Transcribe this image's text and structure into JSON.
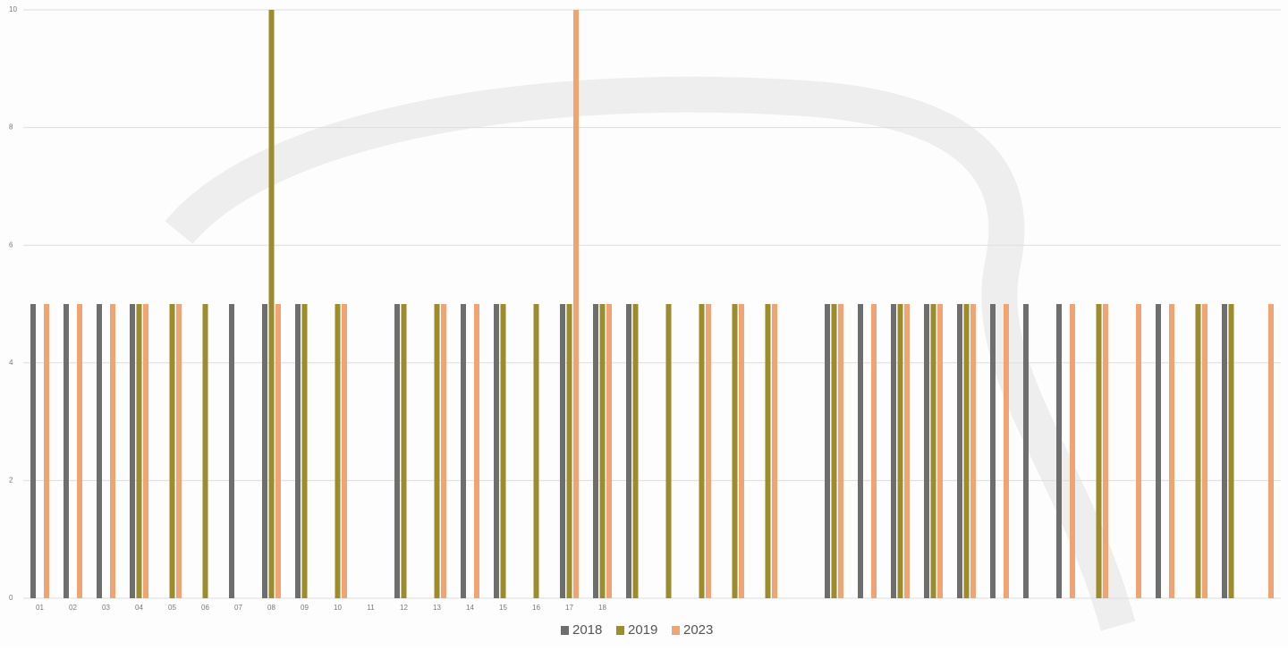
{
  "chart_data": {
    "type": "bar",
    "categories": [
      "01",
      "02",
      "03",
      "04",
      "05",
      "06",
      "07",
      "08",
      "09",
      "10",
      "11",
      "12",
      "13",
      "14",
      "15",
      "16",
      "17",
      "18",
      null,
      null,
      null,
      null,
      null,
      null,
      null,
      null,
      null,
      null,
      null,
      null,
      null,
      null,
      null,
      null,
      null,
      null,
      null,
      null
    ],
    "series": [
      {
        "name": "2018",
        "color": "#6e6e6e",
        "values": [
          5,
          5,
          5,
          5,
          null,
          null,
          5,
          5,
          5,
          null,
          null,
          5,
          null,
          5,
          5,
          null,
          5,
          5,
          5,
          null,
          null,
          null,
          null,
          null,
          5,
          5,
          5,
          5,
          5,
          5,
          5,
          5,
          null,
          null,
          5,
          null,
          5,
          null
        ]
      },
      {
        "name": "2019",
        "color": "#9c8c2c",
        "values": [
          null,
          null,
          null,
          5,
          5,
          5,
          null,
          10,
          5,
          5,
          null,
          5,
          5,
          null,
          5,
          5,
          5,
          5,
          5,
          5,
          5,
          5,
          5,
          null,
          5,
          null,
          5,
          5,
          5,
          null,
          null,
          null,
          5,
          null,
          null,
          5,
          5,
          null
        ]
      },
      {
        "name": "2023",
        "color": "#f0a474",
        "values": [
          5,
          5,
          5,
          5,
          5,
          null,
          null,
          5,
          null,
          5,
          null,
          null,
          5,
          5,
          null,
          null,
          10,
          5,
          null,
          null,
          5,
          5,
          5,
          null,
          5,
          5,
          5,
          5,
          5,
          5,
          null,
          5,
          5,
          5,
          5,
          5,
          null,
          5
        ]
      }
    ],
    "ylim": [
      0,
      10
    ],
    "yticks": [
      0,
      2,
      4,
      6,
      8,
      10
    ],
    "grid": true,
    "legend": "bottom"
  }
}
